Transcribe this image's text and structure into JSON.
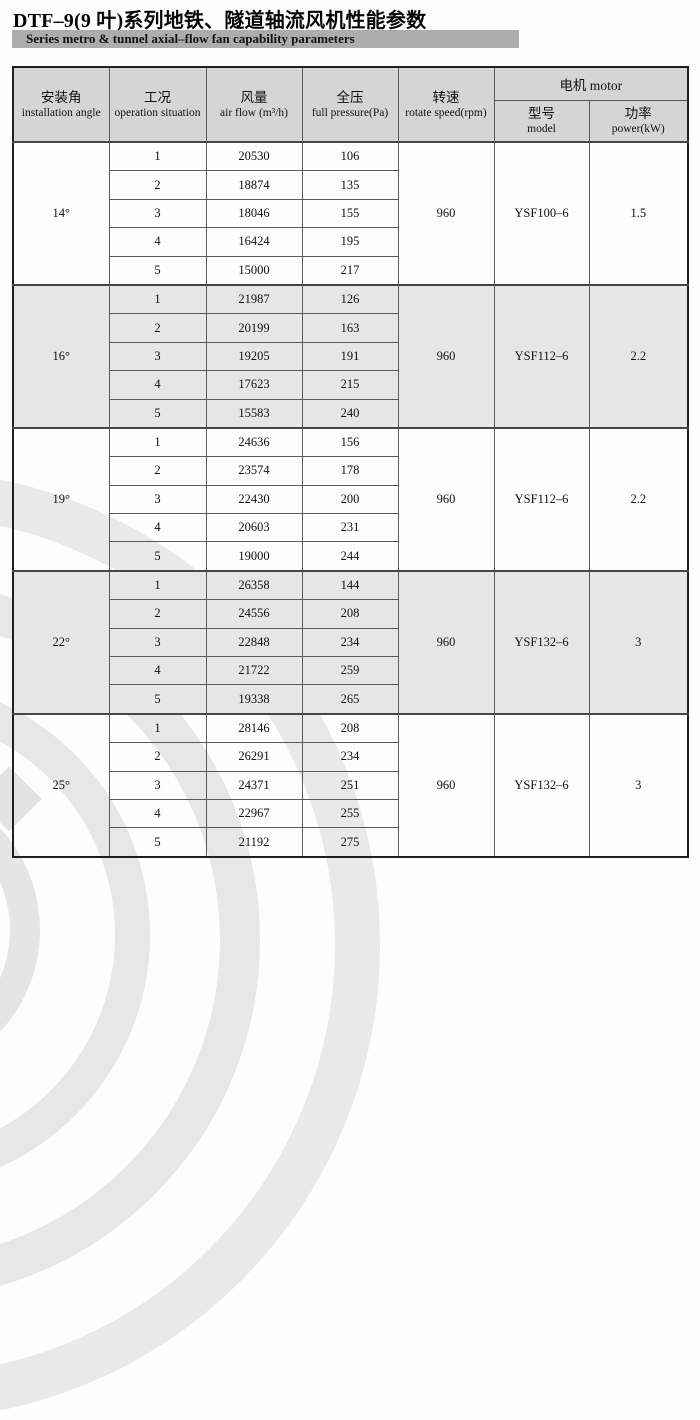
{
  "page": {
    "title": "DTF–9(9 叶)系列地铁、隧道轴流风机性能参数",
    "subtitle": "Series metro & tunnel axial–flow fan capability parameters"
  },
  "colors": {
    "subtitle_bar_bg": "#adadad",
    "header_bg": "#d5d5d5",
    "band_bg": "#e6e6e6",
    "watermark": "#e7e7e7"
  },
  "table": {
    "columns": {
      "angle": {
        "zh": "安装角",
        "en": "installation angle"
      },
      "situation": {
        "zh": "工况",
        "en": "operation situation"
      },
      "airflow": {
        "zh": "风量",
        "en": "air flow (m³/h)"
      },
      "pressure": {
        "zh": "全压",
        "en": "full pressure(Pa)"
      },
      "speed": {
        "zh": "转速",
        "en": "rotate speed(rpm)"
      },
      "motor": {
        "label": "电机 motor"
      },
      "model": {
        "zh": "型号",
        "en": "model"
      },
      "power": {
        "zh": "功率",
        "en": "power(kW)"
      }
    },
    "groups": [
      {
        "angle": "14°",
        "speed": "960",
        "model": "YSF100–6",
        "power": "1.5",
        "shaded": false,
        "rows": [
          {
            "no": "1",
            "flow": "20530",
            "pressure": "106"
          },
          {
            "no": "2",
            "flow": "18874",
            "pressure": "135"
          },
          {
            "no": "3",
            "flow": "18046",
            "pressure": "155"
          },
          {
            "no": "4",
            "flow": "16424",
            "pressure": "195"
          },
          {
            "no": "5",
            "flow": "15000",
            "pressure": "217"
          }
        ]
      },
      {
        "angle": "16°",
        "speed": "960",
        "model": "YSF112–6",
        "power": "2.2",
        "shaded": true,
        "rows": [
          {
            "no": "1",
            "flow": "21987",
            "pressure": "126"
          },
          {
            "no": "2",
            "flow": "20199",
            "pressure": "163"
          },
          {
            "no": "3",
            "flow": "19205",
            "pressure": "191"
          },
          {
            "no": "4",
            "flow": "17623",
            "pressure": "215"
          },
          {
            "no": "5",
            "flow": "15583",
            "pressure": "240"
          }
        ]
      },
      {
        "angle": "19°",
        "speed": "960",
        "model": "YSF112–6",
        "power": "2.2",
        "shaded": false,
        "rows": [
          {
            "no": "1",
            "flow": "24636",
            "pressure": "156"
          },
          {
            "no": "2",
            "flow": "23574",
            "pressure": "178"
          },
          {
            "no": "3",
            "flow": "22430",
            "pressure": "200"
          },
          {
            "no": "4",
            "flow": "20603",
            "pressure": "231"
          },
          {
            "no": "5",
            "flow": "19000",
            "pressure": "244"
          }
        ]
      },
      {
        "angle": "22°",
        "speed": "960",
        "model": "YSF132–6",
        "power": "3",
        "shaded": true,
        "rows": [
          {
            "no": "1",
            "flow": "26358",
            "pressure": "144"
          },
          {
            "no": "2",
            "flow": "24556",
            "pressure": "208"
          },
          {
            "no": "3",
            "flow": "22848",
            "pressure": "234"
          },
          {
            "no": "4",
            "flow": "21722",
            "pressure": "259"
          },
          {
            "no": "5",
            "flow": "19338",
            "pressure": "265"
          }
        ]
      },
      {
        "angle": "25°",
        "speed": "960",
        "model": "YSF132–6",
        "power": "3",
        "shaded": false,
        "rows": [
          {
            "no": "1",
            "flow": "28146",
            "pressure": "208"
          },
          {
            "no": "2",
            "flow": "26291",
            "pressure": "234"
          },
          {
            "no": "3",
            "flow": "24371",
            "pressure": "251"
          },
          {
            "no": "4",
            "flow": "22967",
            "pressure": "255"
          },
          {
            "no": "5",
            "flow": "21192",
            "pressure": "275"
          }
        ]
      }
    ]
  }
}
